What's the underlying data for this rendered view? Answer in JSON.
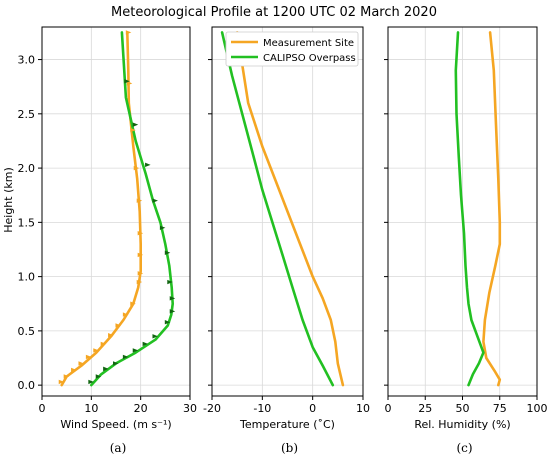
{
  "title": "Meteorological Profile at 1200 UTC 02 March 2020",
  "ylabel": "Height (km)",
  "colors": {
    "site": "#f5a623",
    "calipso": "#22c022",
    "grid": "#d9d9d9"
  },
  "legend": {
    "placement": "top-right of panel b",
    "site": "Measurement Site",
    "calipso": "CALIPSO Overpass"
  },
  "chart_data": [
    {
      "type": "line",
      "panel": "a",
      "caption": "(a)",
      "xlabel": "Wind Speed. (m s⁻¹)",
      "xlim": [
        0,
        30
      ],
      "ylim": [
        -0.1,
        3.3
      ],
      "xticks": [
        0,
        10,
        20,
        30
      ],
      "yticks": [
        0.0,
        0.5,
        1.0,
        1.5,
        2.0,
        2.5,
        3.0
      ],
      "grid": true,
      "series": [
        {
          "name": "Measurement Site",
          "color": "#f5a623",
          "x": [
            4,
            5,
            8,
            11,
            14,
            16.5,
            18.5,
            19.5,
            20,
            20,
            19.8,
            19.3,
            18.5,
            17.6,
            17.5,
            17.3
          ],
          "y": [
            0.0,
            0.08,
            0.18,
            0.3,
            0.45,
            0.6,
            0.75,
            0.9,
            1.05,
            1.3,
            1.6,
            1.9,
            2.2,
            2.6,
            2.9,
            3.25
          ]
        },
        {
          "name": "CALIPSO Overpass",
          "color": "#22c022",
          "x": [
            10,
            12,
            15,
            19,
            23,
            25.5,
            26.2,
            26.5,
            26.3,
            25.8,
            25,
            24,
            22.5,
            21,
            19,
            17,
            16.2
          ],
          "y": [
            0.0,
            0.1,
            0.2,
            0.3,
            0.42,
            0.55,
            0.65,
            0.75,
            0.9,
            1.1,
            1.3,
            1.5,
            1.7,
            1.95,
            2.25,
            2.65,
            3.25
          ]
        }
      ],
      "barbs": [
        {
          "series": "Measurement Site",
          "x": [
            4,
            5,
            6.5,
            8,
            9.5,
            11,
            12.5,
            14,
            15.5,
            17,
            18.5,
            19.8,
            20,
            20,
            20,
            19.8,
            19.2,
            18.5,
            17.8,
            17.6
          ],
          "y": [
            0.03,
            0.08,
            0.14,
            0.2,
            0.26,
            0.32,
            0.38,
            0.46,
            0.55,
            0.65,
            0.75,
            0.95,
            1.03,
            1.2,
            1.4,
            1.7,
            2.0,
            2.35,
            2.78,
            3.25
          ]
        },
        {
          "series": "CALIPSO Overpass",
          "x": [
            10,
            11.5,
            13,
            15,
            17,
            19,
            21,
            23,
            25.5,
            26.5,
            26.5,
            26,
            25.5,
            24.5,
            23,
            21.5,
            19,
            17.3
          ],
          "y": [
            0.03,
            0.08,
            0.15,
            0.2,
            0.26,
            0.32,
            0.38,
            0.45,
            0.58,
            0.68,
            0.8,
            0.95,
            1.22,
            1.45,
            1.7,
            2.03,
            2.4,
            2.8
          ]
        }
      ]
    },
    {
      "type": "line",
      "panel": "b",
      "caption": "(b)",
      "xlabel": "Temperature (˚C)",
      "xlim": [
        -20,
        10
      ],
      "ylim": [
        -0.1,
        3.3
      ],
      "xticks": [
        -20,
        -10,
        0,
        10
      ],
      "yticks": [
        0.0,
        0.5,
        1.0,
        1.5,
        2.0,
        2.5,
        3.0
      ],
      "grid": true,
      "series": [
        {
          "name": "Measurement Site",
          "color": "#f5a623",
          "x": [
            6,
            5,
            4.5,
            3.6,
            2,
            0,
            -2.5,
            -5,
            -7.5,
            -10,
            -12.8,
            -15
          ],
          "y": [
            0.0,
            0.2,
            0.4,
            0.6,
            0.8,
            1.0,
            1.3,
            1.6,
            1.9,
            2.2,
            2.6,
            3.25
          ]
        },
        {
          "name": "CALIPSO Overpass",
          "color": "#22c022",
          "x": [
            4,
            2,
            0,
            -2,
            -4,
            -6,
            -8,
            -10,
            -12,
            -14,
            -16,
            -18
          ],
          "y": [
            0.0,
            0.18,
            0.35,
            0.6,
            0.9,
            1.2,
            1.5,
            1.8,
            2.15,
            2.5,
            2.85,
            3.25
          ]
        }
      ]
    },
    {
      "type": "line",
      "panel": "c",
      "caption": "(c)",
      "xlabel": "Rel. Humidity (%)",
      "xlim": [
        0,
        100
      ],
      "ylim": [
        -0.1,
        3.3
      ],
      "xticks": [
        0,
        25,
        50,
        75,
        100
      ],
      "yticks": [
        0.0,
        0.5,
        1.0,
        1.5,
        2.0,
        2.5,
        3.0
      ],
      "grid": true,
      "series": [
        {
          "name": "Measurement Site",
          "color": "#f5a623",
          "x": [
            74,
            75,
            72,
            66,
            64,
            65,
            68,
            72,
            75,
            75,
            74,
            72.5,
            71,
            68.5
          ],
          "y": [
            0.0,
            0.05,
            0.12,
            0.25,
            0.4,
            0.6,
            0.85,
            1.1,
            1.3,
            1.5,
            1.9,
            2.4,
            2.9,
            3.25
          ]
        },
        {
          "name": "CALIPSO Overpass",
          "color": "#22c022",
          "x": [
            54,
            57,
            61,
            64,
            60,
            56,
            54,
            53,
            52,
            51,
            49,
            47.5,
            46,
            45.5,
            47
          ],
          "y": [
            0.0,
            0.1,
            0.2,
            0.3,
            0.45,
            0.6,
            0.75,
            0.9,
            1.1,
            1.4,
            1.75,
            2.1,
            2.5,
            2.9,
            3.25
          ]
        }
      ]
    }
  ]
}
